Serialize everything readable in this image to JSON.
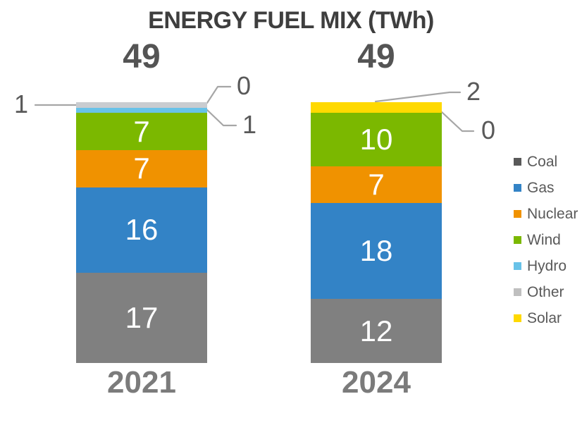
{
  "chart_data": {
    "type": "bar",
    "variant": "stacked-column",
    "title": "ENERGY FUEL MIX (TWh)",
    "categories": [
      "2021",
      "2024"
    ],
    "series": [
      {
        "name": "Coal",
        "color": "#808080",
        "legend_color": "#595959",
        "values": [
          17,
          12
        ]
      },
      {
        "name": "Gas",
        "color": "#3383C6",
        "values": [
          16,
          18
        ]
      },
      {
        "name": "Nuclear",
        "color": "#F09200",
        "values": [
          7,
          7
        ]
      },
      {
        "name": "Wind",
        "color": "#7BB800",
        "values": [
          7,
          10
        ]
      },
      {
        "name": "Hydro",
        "color": "#68C2E8",
        "values": [
          1,
          0
        ]
      },
      {
        "name": "Other",
        "color": "#C9CCD0",
        "legend_color": "#BFBFBF",
        "values": [
          1,
          0
        ]
      },
      {
        "name": "Solar",
        "color": "#FFD900",
        "values": [
          0,
          2
        ]
      }
    ],
    "totals": [
      "49",
      "49"
    ],
    "ylim": [
      0,
      49
    ],
    "grid": false,
    "axes_shown": false,
    "legend_position": "right",
    "legend": [
      "Coal",
      "Gas",
      "Nuclear",
      "Wind",
      "Hydro",
      "Other",
      "Solar"
    ],
    "callouts": [
      {
        "category": "2021",
        "series": "Other",
        "label": "1"
      },
      {
        "category": "2021",
        "series": "Solar",
        "label": "0"
      },
      {
        "category": "2021",
        "series": "Hydro",
        "label": "1"
      },
      {
        "category": "2024",
        "series": "Solar",
        "label": "2"
      },
      {
        "category": "2024",
        "series": "Hydro",
        "label": "0"
      }
    ],
    "colors": {
      "title_text": "#3E3E3E",
      "total_text": "#545454",
      "category_text": "#7B7B7B",
      "bar_value_text": "#FFFFFF",
      "callout_text": "#595959",
      "legend_text": "#595959",
      "leader_line": "#A6A6A6"
    }
  }
}
